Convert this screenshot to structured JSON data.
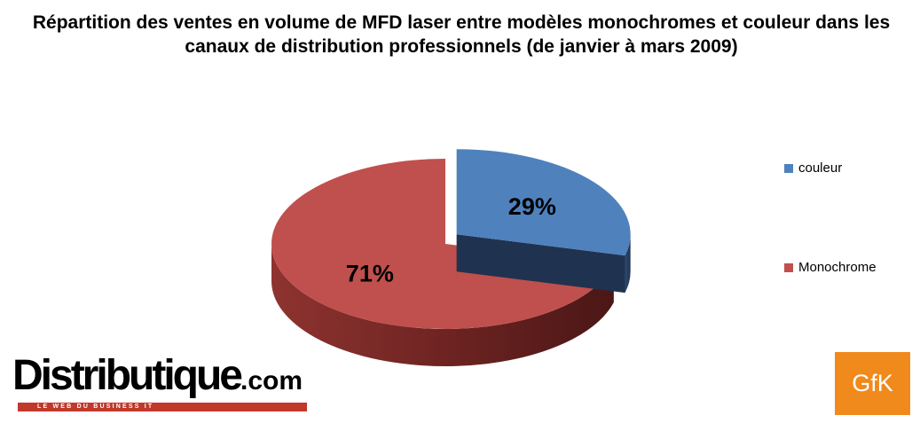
{
  "chart_data": {
    "type": "pie",
    "title": "Répartition des ventes en volume de MFD laser entre modèles monochromes et couleur dans les canaux de distribution professionnels (de janvier à mars 2009)",
    "slices": [
      {
        "name": "couleur",
        "value": 29,
        "label": "29%",
        "color": "#4f81bd",
        "exploded": true
      },
      {
        "name": "Monochrome",
        "value": 71,
        "label": "71%",
        "color": "#c0504d",
        "exploded": false
      }
    ],
    "three_d": true,
    "legend_position": "right"
  },
  "logos": {
    "distributique_main": "Distributique",
    "distributique_domain": ".com",
    "distributique_tagline": "LE WEB DU BUSINESS IT",
    "gfk": "GfK"
  }
}
